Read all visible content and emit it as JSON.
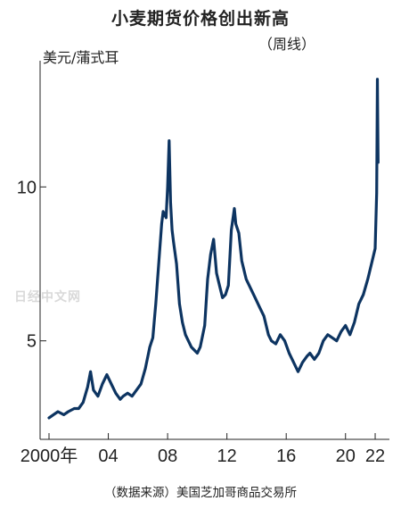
{
  "header": {
    "title": "小麦期货价格创出新高",
    "subtitle": "（周线）",
    "unit": "美元/蒲式耳"
  },
  "source": "（数据来源）美国芝加哥商品交易所",
  "watermark": "日经中文网",
  "chart_data": {
    "type": "line",
    "title": "小麦期货价格创出新高",
    "subtitle": "（周线）",
    "ylabel": "美元/蒲式耳",
    "xlabel": "",
    "xlim": [
      2000,
      2022.6
    ],
    "ylim": [
      1.8,
      14.1
    ],
    "x_ticks": [
      {
        "value": 2000,
        "label": "2000年"
      },
      {
        "value": 2004,
        "label": "04"
      },
      {
        "value": 2008,
        "label": "08"
      },
      {
        "value": 2012,
        "label": "12"
      },
      {
        "value": 2016,
        "label": "16"
      },
      {
        "value": 2020,
        "label": "20"
      },
      {
        "value": 2022,
        "label": "22"
      }
    ],
    "y_ticks": [
      {
        "value": 5,
        "label": "5"
      },
      {
        "value": 10,
        "label": "10"
      }
    ],
    "grid": false,
    "color": "#0d3461",
    "series": [
      {
        "x": [
          2000.0,
          2000.3,
          2000.6,
          2001.0,
          2001.3,
          2001.7,
          2002.0,
          2002.3,
          2002.6,
          2002.8,
          2003.0,
          2003.3,
          2003.6,
          2003.9,
          2004.2,
          2004.5,
          2004.8,
          2005.0,
          2005.3,
          2005.6,
          2005.9,
          2006.2,
          2006.5,
          2006.8,
          2007.0,
          2007.2,
          2007.4,
          2007.6,
          2007.7,
          2007.9,
          2008.0,
          2008.1,
          2008.2,
          2008.3,
          2008.4,
          2008.6,
          2008.8,
          2009.0,
          2009.2,
          2009.4,
          2009.6,
          2009.8,
          2010.0,
          2010.2,
          2010.5,
          2010.7,
          2010.9,
          2011.1,
          2011.3,
          2011.5,
          2011.7,
          2011.9,
          2012.1,
          2012.3,
          2012.5,
          2012.6,
          2012.8,
          2013.0,
          2013.3,
          2013.6,
          2013.9,
          2014.2,
          2014.5,
          2014.8,
          2015.0,
          2015.3,
          2015.6,
          2015.9,
          2016.2,
          2016.5,
          2016.8,
          2017.1,
          2017.4,
          2017.6,
          2017.9,
          2018.2,
          2018.5,
          2018.8,
          2019.1,
          2019.4,
          2019.7,
          2020.0,
          2020.3,
          2020.6,
          2020.9,
          2021.2,
          2021.5,
          2021.8,
          2022.0,
          2022.1,
          2022.15,
          2022.2
        ],
        "y": [
          2.5,
          2.6,
          2.7,
          2.6,
          2.7,
          2.8,
          2.8,
          3.0,
          3.5,
          4.0,
          3.4,
          3.2,
          3.6,
          3.9,
          3.6,
          3.3,
          3.1,
          3.2,
          3.3,
          3.2,
          3.4,
          3.6,
          4.1,
          4.8,
          5.1,
          6.2,
          7.5,
          8.8,
          9.2,
          9.0,
          10.0,
          11.5,
          9.5,
          8.6,
          8.2,
          7.5,
          6.2,
          5.6,
          5.2,
          5.0,
          4.8,
          4.7,
          4.6,
          4.8,
          5.5,
          7.0,
          7.8,
          8.3,
          7.2,
          6.8,
          6.4,
          6.5,
          6.8,
          8.6,
          9.3,
          8.8,
          8.5,
          7.6,
          7.0,
          6.7,
          6.4,
          6.1,
          5.8,
          5.2,
          5.0,
          4.9,
          5.2,
          5.0,
          4.6,
          4.3,
          4.0,
          4.3,
          4.5,
          4.6,
          4.4,
          4.6,
          5.0,
          5.2,
          5.1,
          5.0,
          5.3,
          5.5,
          5.2,
          5.6,
          6.2,
          6.5,
          7.0,
          7.6,
          8.0,
          9.8,
          13.5,
          10.8
        ]
      }
    ]
  }
}
